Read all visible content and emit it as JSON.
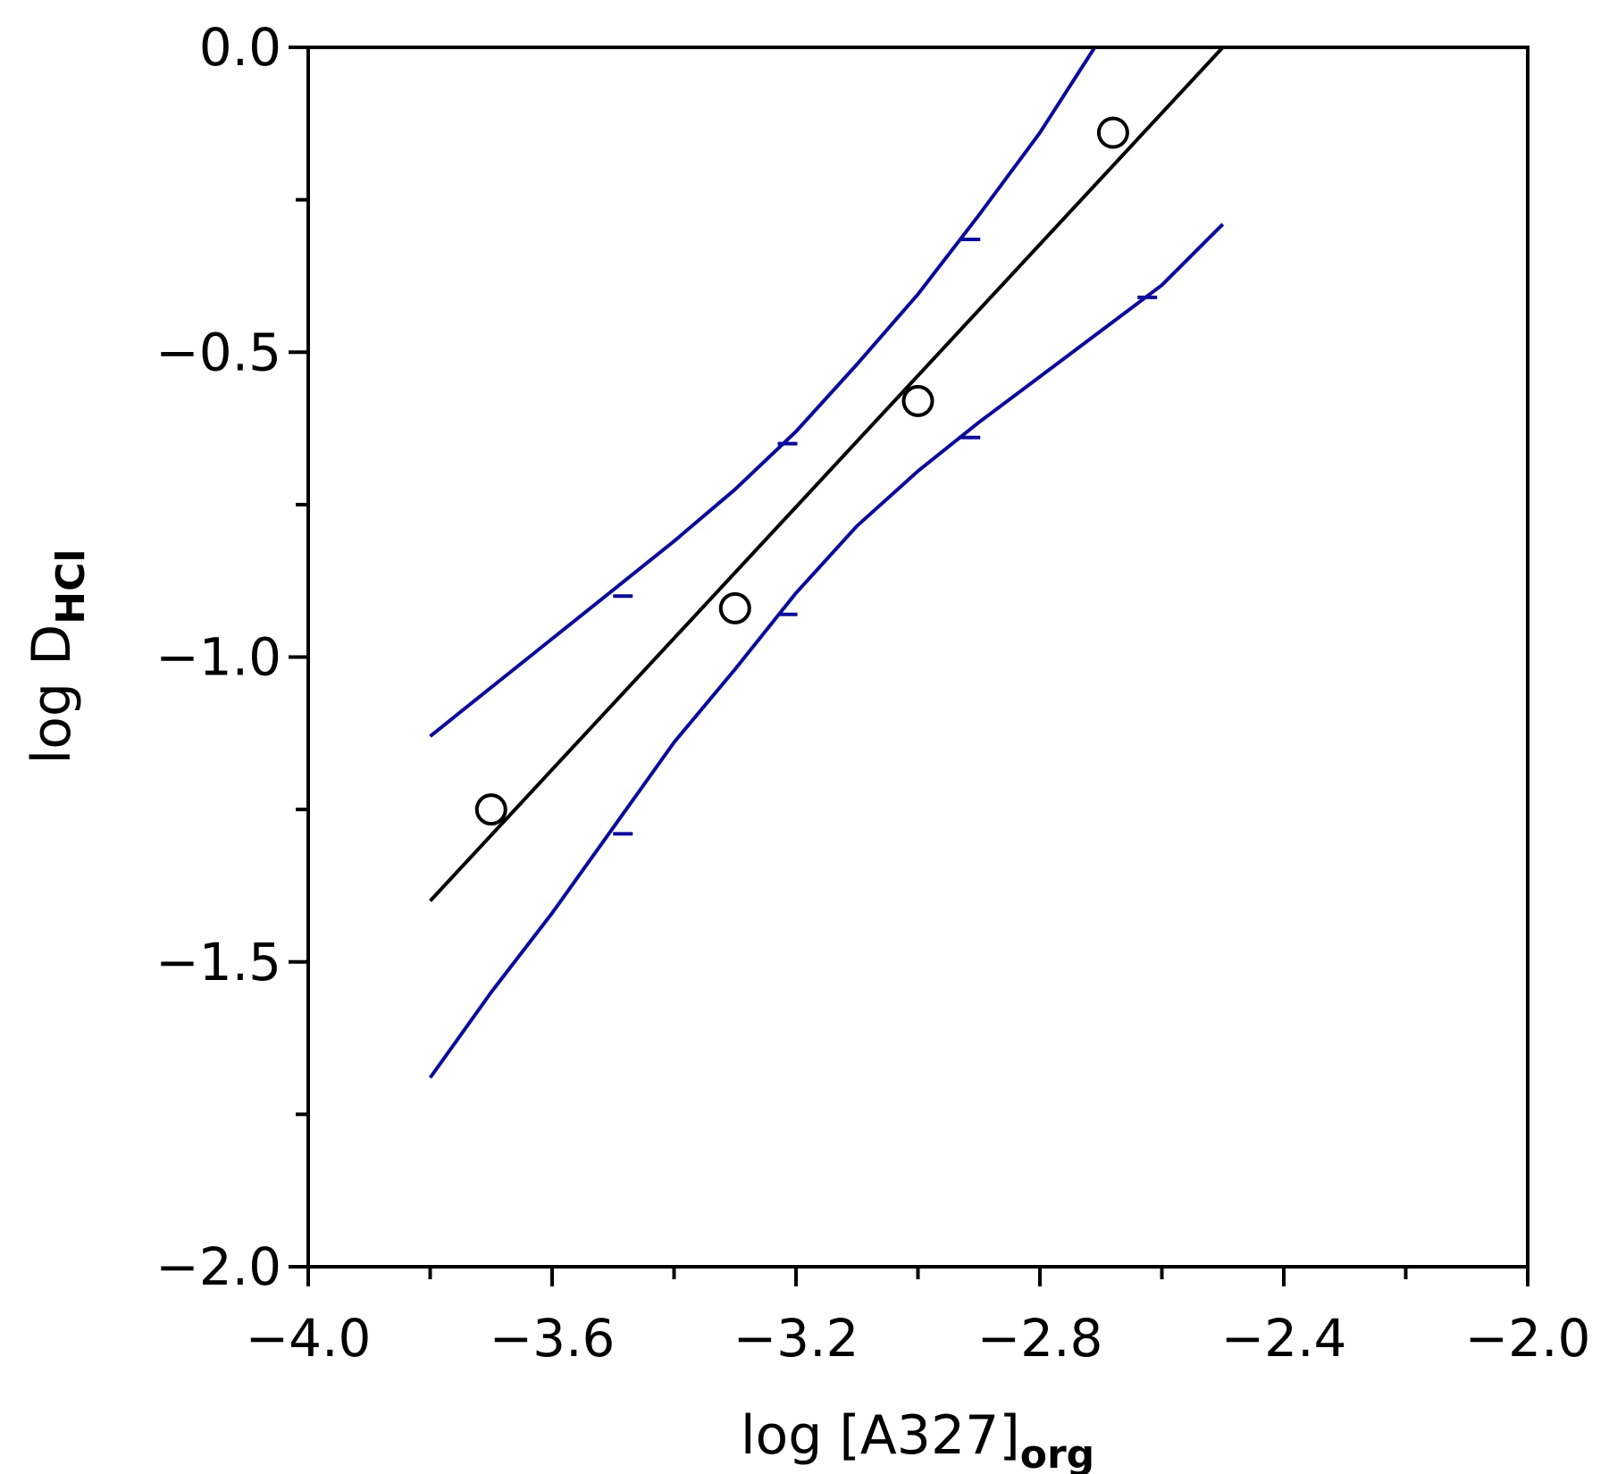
{
  "chart_data": {
    "type": "scatter",
    "xlabel": {
      "main": "log [A327]",
      "sub": "org"
    },
    "ylabel": {
      "main": "log D",
      "sub": "HCl"
    },
    "xlim": [
      -4.0,
      -2.0
    ],
    "ylim": [
      -2.0,
      0.0
    ],
    "x_ticks": [
      -4.0,
      -3.6,
      -3.2,
      -2.8,
      -2.4,
      -2.0
    ],
    "x_tick_labels": [
      "−4.0",
      "−3.6",
      "−3.2",
      "−2.8",
      "−2.4",
      "−2.0"
    ],
    "x_minor_ticks": [
      -3.8,
      -3.4,
      -3.0,
      -2.6,
      -2.2
    ],
    "y_ticks": [
      0.0,
      -0.5,
      -1.0,
      -1.5,
      -2.0
    ],
    "y_tick_labels": [
      "0.0",
      "−0.5",
      "−1.0",
      "−1.5",
      "−2.0"
    ],
    "y_minor_ticks": [
      -0.25,
      -0.75,
      -1.25,
      -1.75
    ],
    "grid": false,
    "legend": "none",
    "colors": {
      "points": "#000000",
      "fit": "#000000",
      "band": "#0a0a9a"
    },
    "points": {
      "x": [
        -3.7,
        -3.3,
        -3.0,
        -2.68
      ],
      "y": [
        -1.25,
        -0.92,
        -0.58,
        -0.14
      ]
    },
    "fit_line": {
      "x": [
        -3.8,
        -2.5
      ],
      "y": [
        -1.4,
        0.0
      ]
    },
    "upper_band": {
      "x": [
        -3.8,
        -3.7,
        -3.6,
        -3.5,
        -3.4,
        -3.3,
        -3.2,
        -3.1,
        -3.0,
        -2.9,
        -2.8,
        -2.71
      ],
      "y": [
        -1.13,
        -1.05,
        -0.97,
        -0.89,
        -0.81,
        -0.725,
        -0.63,
        -0.52,
        -0.405,
        -0.275,
        -0.14,
        0.0
      ]
    },
    "lower_band": {
      "x": [
        -3.8,
        -3.7,
        -3.6,
        -3.5,
        -3.4,
        -3.3,
        -3.2,
        -3.1,
        -3.0,
        -2.9,
        -2.8,
        -2.7,
        -2.6,
        -2.5
      ],
      "y": [
        -1.69,
        -1.55,
        -1.42,
        -1.28,
        -1.14,
        -1.02,
        -0.895,
        -0.785,
        -0.695,
        -0.615,
        -0.54,
        -0.465,
        -0.39,
        -0.29
      ]
    },
    "band_ticks": {
      "upper": [
        {
          "x": -3.5,
          "y": -0.9
        },
        {
          "x": -3.23,
          "y": -0.65
        },
        {
          "x": -2.93,
          "y": -0.315
        }
      ],
      "lower": [
        {
          "x": -3.5,
          "y": -1.29
        },
        {
          "x": -3.23,
          "y": -0.93
        },
        {
          "x": -2.93,
          "y": -0.64
        },
        {
          "x": -2.64,
          "y": -0.41
        }
      ]
    }
  }
}
